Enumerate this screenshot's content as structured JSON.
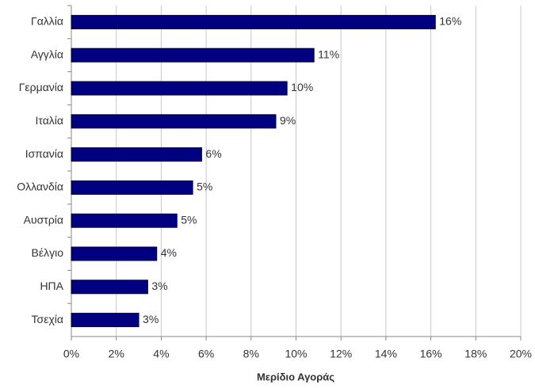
{
  "chart_data": {
    "type": "hbar",
    "categories": [
      "Γαλλία",
      "Αγγλία",
      "Γερμανία",
      "Ιταλία",
      "Ισπανία",
      "Ολλανδία",
      "Αυστρία",
      "Βέλγιο",
      "ΗΠΑ",
      "Τσεχία"
    ],
    "values": [
      16.2,
      10.8,
      9.6,
      9.1,
      5.8,
      5.4,
      4.7,
      3.8,
      3.4,
      3.0
    ],
    "value_labels": [
      "16%",
      "11%",
      "10%",
      "9%",
      "6%",
      "5%",
      "5%",
      "4%",
      "3%",
      "3%"
    ],
    "color": "#000080",
    "xlabel": "Μερίδιο Αγοράς",
    "xlim": [
      0,
      20
    ],
    "xticks": [
      {
        "value": 0,
        "label": "0%"
      },
      {
        "value": 2,
        "label": "2%"
      },
      {
        "value": 4,
        "label": "4%"
      },
      {
        "value": 6,
        "label": "6%"
      },
      {
        "value": 8,
        "label": "8%"
      },
      {
        "value": 10,
        "label": "10%"
      },
      {
        "value": 12,
        "label": "12%"
      },
      {
        "value": 14,
        "label": "14%"
      },
      {
        "value": 16,
        "label": "16%"
      },
      {
        "value": 18,
        "label": "18%"
      },
      {
        "value": 20,
        "label": "20%"
      }
    ],
    "grid": true
  }
}
